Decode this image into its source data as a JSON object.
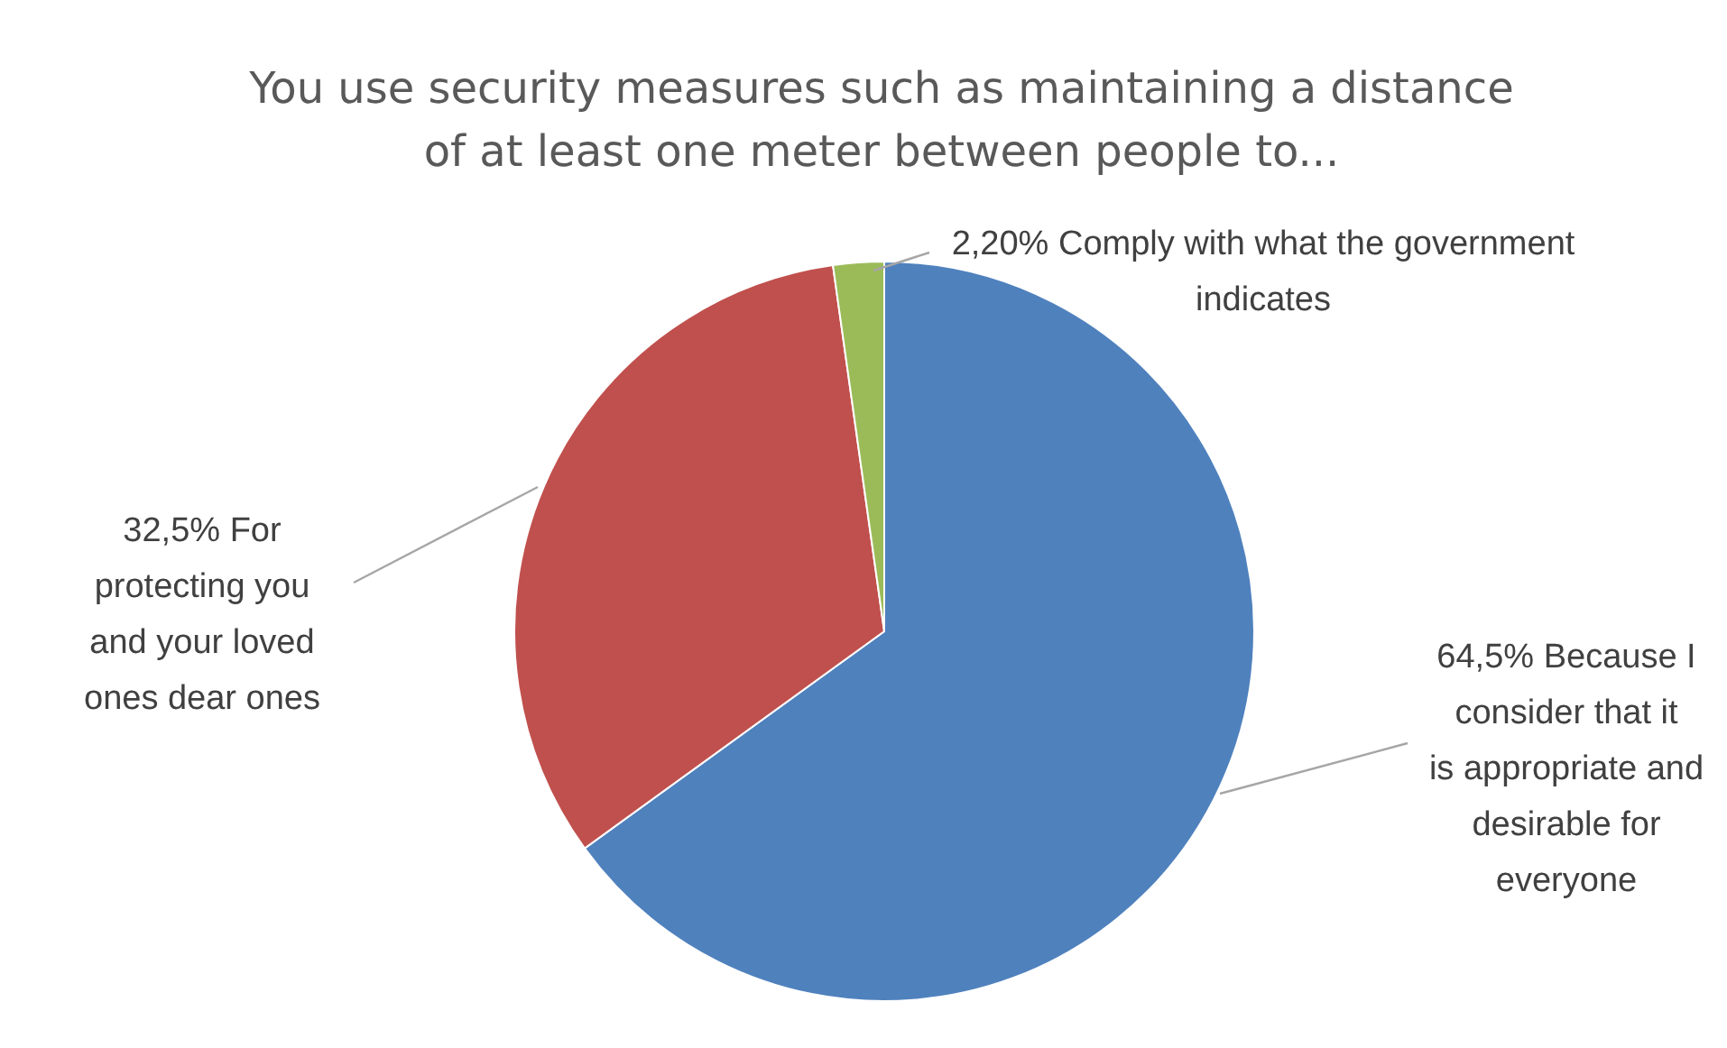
{
  "chart_data": {
    "type": "pie",
    "title": "You use security measures such as maintaining a distance of at least one meter between people to...",
    "categories": [
      "Because I consider that it is appropriate and desirable for everyone",
      "For protecting you and your loved ones dear ones",
      "Comply with what the government indicates"
    ],
    "values": [
      64.5,
      32.5,
      2.2
    ],
    "value_labels": [
      "64,5%",
      "32,5%",
      "2,20%"
    ],
    "colors": [
      "#4f81bd",
      "#c0504d",
      "#9bbb59"
    ],
    "legend": false
  }
}
